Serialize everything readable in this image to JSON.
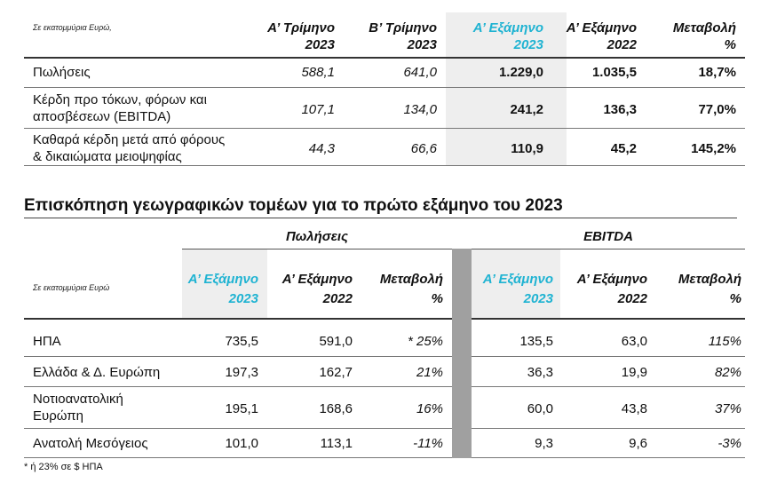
{
  "table1": {
    "unit_note": "Σε εκατομμύρια Ευρώ,",
    "columns": [
      {
        "line1": "Α’ Τρίμηνο",
        "line2": "2023"
      },
      {
        "line1": "Β’ Τρίμηνο",
        "line2": "2023"
      },
      {
        "line1": "Α’ Εξάμηνο",
        "line2": "2023"
      },
      {
        "line1": "Α’ Εξάμηνο",
        "line2": "2022"
      },
      {
        "line1": "Μεταβολή",
        "line2": "%"
      }
    ],
    "rows": [
      {
        "label1": "Πωλήσεις",
        "label2": "",
        "values": [
          "588,1",
          "641,0",
          "1.229,0",
          "1.035,5",
          "18,7%"
        ]
      },
      {
        "label1": "Κέρδη προ τόκων, φόρων και",
        "label2": "αποσβέσεων (EBITDA)",
        "values": [
          "107,1",
          "134,0",
          "241,2",
          "136,3",
          "77,0%"
        ]
      },
      {
        "label1": "Καθαρά κέρδη μετά από φόρους",
        "label2": "& δικαιώματα μειοψηφίας",
        "values": [
          "44,3",
          "66,6",
          "110,9",
          "45,2",
          "145,2%"
        ]
      }
    ]
  },
  "section_title": "Επισκόπηση γεωγραφικών τομέων για το πρώτο εξάμηνο του 2023",
  "table2": {
    "unit_note": "Σε εκατομμύρια Ευρώ",
    "groups": [
      "Πωλήσεις",
      "EBITDA"
    ],
    "columns": [
      {
        "line1": "Α’ Εξάμηνο",
        "line2": "2023"
      },
      {
        "line1": "Α’ Εξάμηνο",
        "line2": "2022"
      },
      {
        "line1": "Μεταβολή",
        "line2": "%"
      },
      {
        "line1": "Α’ Εξάμηνο",
        "line2": "2023"
      },
      {
        "line1": "Α’ Εξάμηνο",
        "line2": "2022"
      },
      {
        "line1": "Μεταβολή",
        "line2": "%"
      }
    ],
    "rows": [
      {
        "label1": "ΗΠΑ",
        "label2": "",
        "values": [
          "735,5",
          "591,0",
          "* 25%",
          "135,5",
          "63,0",
          "115%"
        ]
      },
      {
        "label1": "Ελλάδα & Δ. Ευρώπη",
        "label2": "",
        "values": [
          "197,3",
          "162,7",
          "21%",
          "36,3",
          "19,9",
          "82%"
        ]
      },
      {
        "label1": "Νοτιοανατολική",
        "label2": "Ευρώπη",
        "values": [
          "195,1",
          "168,6",
          "16%",
          "60,0",
          "43,8",
          "37%"
        ]
      },
      {
        "label1": "Ανατολή Μεσόγειος",
        "label2": "",
        "values": [
          "101,0",
          "113,1",
          "-11%",
          "9,3",
          "9,6",
          "-3%"
        ]
      }
    ]
  },
  "footnote": "* ή 23% σε $ ΗΠΑ",
  "colors": {
    "accent": "#1fb3d2",
    "shade": "#eeeeee",
    "separator": "#a0a0a0"
  }
}
